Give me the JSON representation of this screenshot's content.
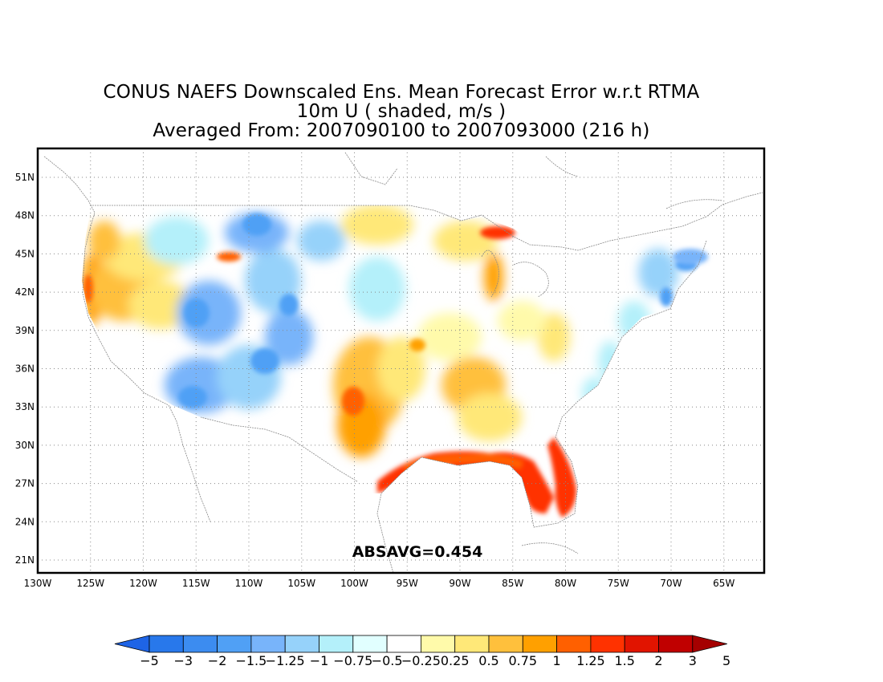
{
  "title_lines": [
    "CONUS NAEFS Downscaled Ens. Mean Forecast Error w.r.t RTMA",
    "10m U ( shaded, m/s )",
    "Averaged From: 2007090100 to 2007093000 (216 h)"
  ],
  "annotation": "ABSAVG=0.454",
  "axes": {
    "lon_labels": [
      "130W",
      "125W",
      "120W",
      "115W",
      "110W",
      "105W",
      "100W",
      "95W",
      "90W",
      "85W",
      "80W",
      "75W",
      "70W",
      "65W"
    ],
    "lat_labels": [
      "21N",
      "24N",
      "27N",
      "30N",
      "33N",
      "36N",
      "39N",
      "42N",
      "45N",
      "48N",
      "51N"
    ]
  },
  "colorbar": {
    "labels": [
      "-5",
      "-3",
      "-2",
      "-1.5",
      "-1.25",
      "-1",
      "-0.75",
      "-0.5",
      "-0.25",
      "0.25",
      "0.5",
      "0.75",
      "1",
      "1.25",
      "1.5",
      "2",
      "3",
      "5"
    ],
    "colors": [
      "#1e64e6",
      "#2878eb",
      "#3c8cf0",
      "#50a0f5",
      "#78b4fa",
      "#96d2fa",
      "#b4f0fa",
      "#e1ffff",
      "#ffffff",
      "#fffaaa",
      "#ffe878",
      "#ffc03c",
      "#ffa000",
      "#ff6000",
      "#ff3200",
      "#e11400",
      "#c00000",
      "#a50000"
    ]
  },
  "map_features": {
    "region": "CONUS",
    "grid": "dotted",
    "hotspots": [
      {
        "name": "gulf-coast-florida",
        "level": "high positive"
      },
      {
        "name": "southern-plains",
        "level": "moderate positive"
      },
      {
        "name": "intermountain-west",
        "level": "moderate negative"
      },
      {
        "name": "northeast-coast",
        "level": "moderate negative"
      }
    ]
  }
}
